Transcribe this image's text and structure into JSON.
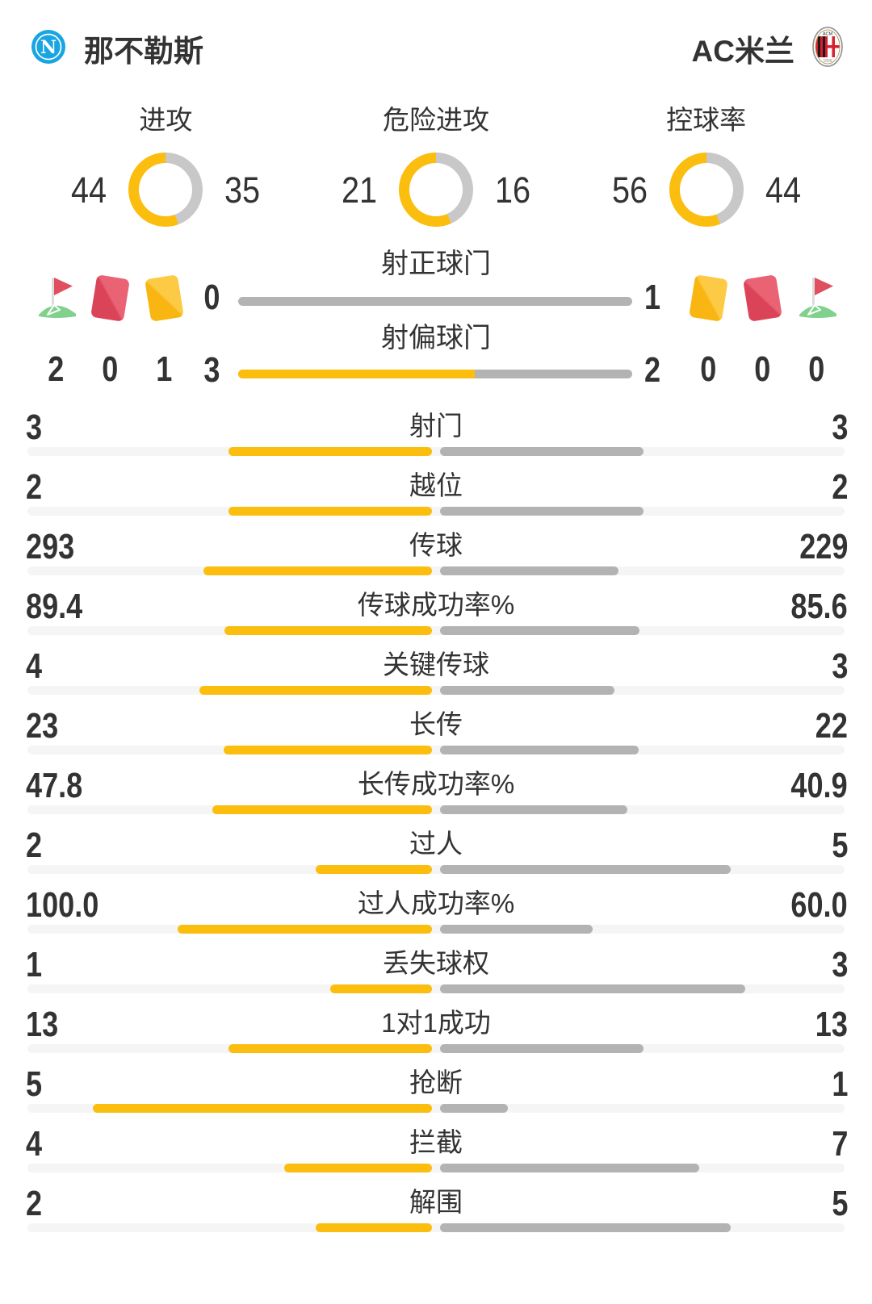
{
  "header": {
    "home": {
      "name": "那不勒斯"
    },
    "away": {
      "name": "AC米兰"
    }
  },
  "donuts": [
    {
      "label": "进攻",
      "home": 44,
      "away": 35
    },
    {
      "label": "危险进攻",
      "home": 21,
      "away": 16
    },
    {
      "label": "控球率",
      "home": 56,
      "away": 44
    }
  ],
  "discipline": {
    "home_counts": {
      "corner": "2",
      "red": "0",
      "yellow": "1"
    },
    "away_counts": {
      "yellow": "0",
      "red": "0",
      "corner": "0"
    },
    "rows": [
      {
        "label": "射正球门",
        "home": "0",
        "away": "1"
      },
      {
        "label": "射偏球门",
        "home": "3",
        "away": "2"
      }
    ]
  },
  "stats": [
    {
      "label": "射门",
      "home": "3",
      "away": "3"
    },
    {
      "label": "越位",
      "home": "2",
      "away": "2"
    },
    {
      "label": "传球",
      "home": "293",
      "away": "229"
    },
    {
      "label": "传球成功率%",
      "home": "89.4",
      "away": "85.6"
    },
    {
      "label": "关键传球",
      "home": "4",
      "away": "3"
    },
    {
      "label": "长传",
      "home": "23",
      "away": "22"
    },
    {
      "label": "长传成功率%",
      "home": "47.8",
      "away": "40.9"
    },
    {
      "label": "过人",
      "home": "2",
      "away": "5"
    },
    {
      "label": "过人成功率%",
      "home": "100.0",
      "away": "60.0"
    },
    {
      "label": "丢失球权",
      "home": "1",
      "away": "3"
    },
    {
      "label": "1对1成功",
      "home": "13",
      "away": "13"
    },
    {
      "label": "抢断",
      "home": "5",
      "away": "1"
    },
    {
      "label": "拦截",
      "home": "4",
      "away": "7"
    },
    {
      "label": "解围",
      "home": "2",
      "away": "5"
    }
  ],
  "colors": {
    "accent": "#fbbd0e",
    "bar_gray": "#b3b3b3",
    "track": "#f5f5f5",
    "donut_gray": "#c8c8c8",
    "text": "#333333",
    "card_red": "#df4c5f",
    "card_yellow": "#fbbc1b",
    "flag_green": "#7fd18c",
    "napoli_blue": "#19a5e2",
    "milan_red": "#d6202f"
  }
}
